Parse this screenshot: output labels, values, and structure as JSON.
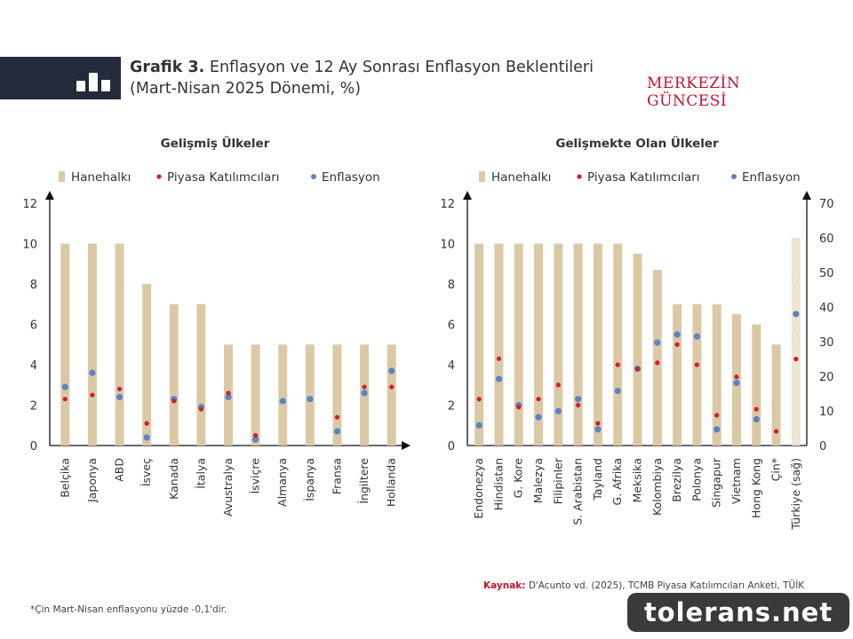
{
  "header": {
    "title_bold": "Grafik 3.",
    "title_rest": " Enflasyon ve 12 Ay Sonrası Enflasyon Beklentileri",
    "title_line2": "(Mart-Nisan 2025 Dönemi, %)",
    "brand": "MERKEZİN GÜNCESİ"
  },
  "legend": {
    "households": "Hanehalkı",
    "market": "Piyasa Katılımcıları",
    "inflation": "Enflasyon"
  },
  "colors": {
    "bar": "#dbc9a6",
    "market": "#d01c35",
    "inflation": "#5b84c4",
    "header_band": "#232b3b",
    "accent": "#c4122f"
  },
  "chart_data": [
    {
      "type": "bar",
      "title": "Gelişmiş Ülkeler",
      "categories": [
        "Belçika",
        "Japonya",
        "ABD",
        "İsveç",
        "Kanada",
        "İtalya",
        "Avustralya",
        "İsviçre",
        "Almanya",
        "İspanya",
        "Fransa",
        "İngiltere",
        "Hollanda"
      ],
      "series": [
        {
          "name": "Hanehalkı",
          "mark": "bar",
          "values": [
            10,
            10,
            10,
            8,
            7,
            7,
            5,
            5,
            5,
            5,
            5,
            5,
            5
          ]
        },
        {
          "name": "Piyasa Katılımcıları",
          "mark": "dot",
          "values": [
            2.3,
            2.5,
            2.8,
            1.1,
            2.2,
            1.8,
            2.6,
            0.5,
            null,
            null,
            1.4,
            2.9,
            2.9
          ]
        },
        {
          "name": "Enflasyon",
          "mark": "dot",
          "values": [
            2.9,
            3.6,
            2.4,
            0.4,
            2.3,
            1.9,
            2.4,
            0.3,
            2.2,
            2.3,
            0.7,
            2.6,
            3.7
          ]
        }
      ],
      "ylim": [
        0,
        12
      ],
      "yticks": [
        0,
        2,
        4,
        6,
        8,
        10,
        12
      ],
      "legend_position": "top"
    },
    {
      "type": "bar",
      "title": "Gelişmekte Olan Ülkeler",
      "categories": [
        "Endonezya",
        "Hindistan",
        "G. Kore",
        "Malezya",
        "Filipinler",
        "S. Arabistan",
        "Tayland",
        "G. Afrika",
        "Meksika",
        "Kolombiya",
        "Brezilya",
        "Polonya",
        "Singapur",
        "Vietnam",
        "Hong Kong",
        "Çin*",
        "Türkiye (sağ)"
      ],
      "series": [
        {
          "name": "Hanehalkı",
          "mark": "bar",
          "values": [
            10,
            10,
            10,
            10,
            10,
            10,
            10,
            10,
            9.5,
            8.7,
            7,
            7,
            7,
            6.5,
            6,
            5,
            60
          ]
        },
        {
          "name": "Piyasa Katılımcıları",
          "mark": "dot",
          "values": [
            2.3,
            4.3,
            1.9,
            2.3,
            3.0,
            2.0,
            1.1,
            4.0,
            3.8,
            4.1,
            5.0,
            4.0,
            1.5,
            3.4,
            1.8,
            0.7,
            25
          ]
        },
        {
          "name": "Enflasyon",
          "mark": "dot",
          "values": [
            1.0,
            3.3,
            2.0,
            1.4,
            1.7,
            2.3,
            0.8,
            2.7,
            3.8,
            5.1,
            5.5,
            5.4,
            0.8,
            3.1,
            1.3,
            null,
            38
          ]
        }
      ],
      "ylim": [
        0,
        12
      ],
      "yticks": [
        0,
        2,
        4,
        6,
        8,
        10,
        12
      ],
      "ylim_right": [
        0,
        70
      ],
      "yticks_right": [
        0,
        10,
        20,
        30,
        40,
        50,
        60,
        70
      ],
      "right_axis_categories": [
        "Türkiye (sağ)"
      ],
      "legend_position": "top"
    }
  ],
  "source": {
    "label": "Kaynak:",
    "text": " D'Acunto vd. (2025), TCMB Piyasa Katılımcıları Anketi, TÜİK"
  },
  "footnote": "*Çin Mart-Nisan enflasyonu yüzde -0,1'dir.",
  "watermark": "tolerans.net"
}
